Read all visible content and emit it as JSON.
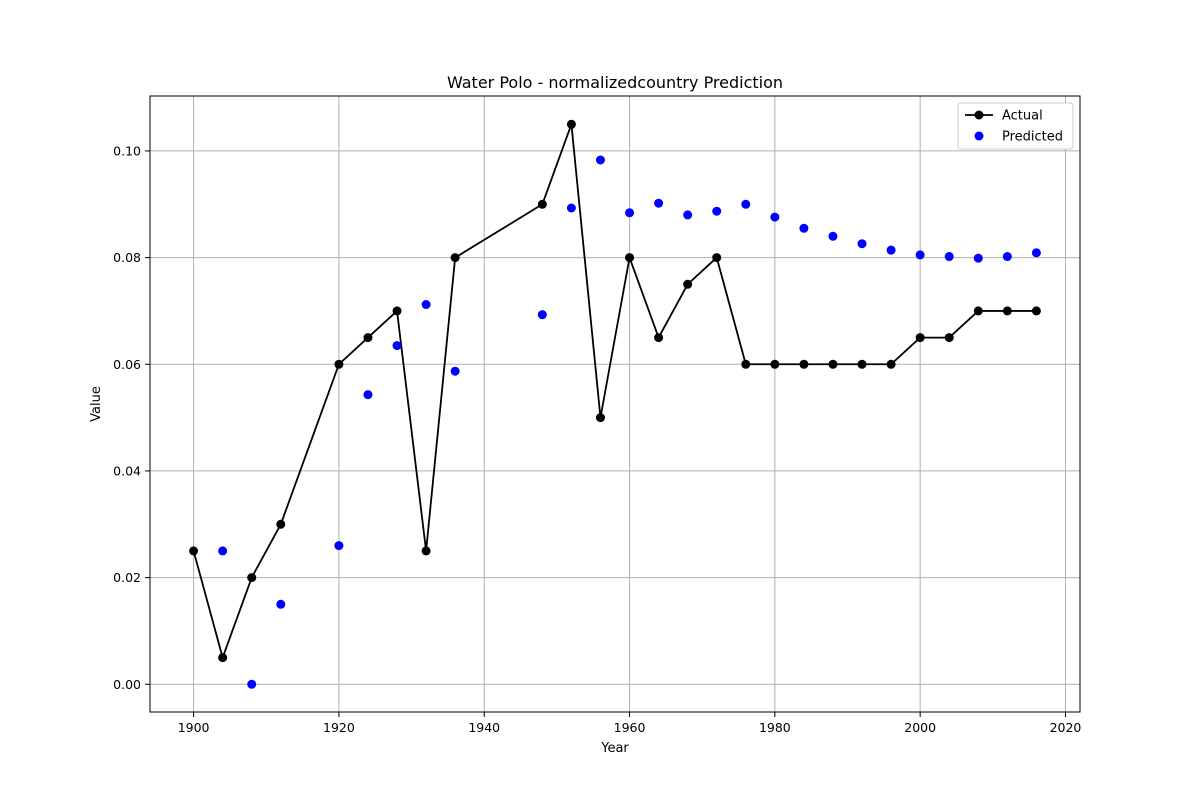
{
  "chart_data": {
    "type": "line",
    "title": "Water Polo - normalizedcountry Prediction",
    "xlabel": "Year",
    "ylabel": "Value",
    "xlim": [
      1894,
      2022
    ],
    "ylim": [
      -0.0052,
      0.1103
    ],
    "x_ticks": [
      1900,
      1920,
      1940,
      1960,
      1980,
      2000,
      2020
    ],
    "y_ticks": [
      0.0,
      0.02,
      0.04,
      0.06,
      0.08,
      0.1
    ],
    "y_tick_labels": [
      "0.00",
      "0.02",
      "0.04",
      "0.06",
      "0.08",
      "0.10"
    ],
    "grid": true,
    "legend_position": "top-right",
    "series": [
      {
        "name": "Actual",
        "style": "line-with-markers",
        "color": "#000000",
        "x": [
          1900,
          1904,
          1908,
          1912,
          1920,
          1924,
          1928,
          1932,
          1936,
          1948,
          1952,
          1956,
          1960,
          1964,
          1968,
          1972,
          1976,
          1980,
          1984,
          1988,
          1992,
          1996,
          2000,
          2004,
          2008,
          2012,
          2016
        ],
        "values": [
          0.025,
          0.005,
          0.02,
          0.03,
          0.06,
          0.065,
          0.07,
          0.025,
          0.08,
          0.09,
          0.105,
          0.05,
          0.08,
          0.065,
          0.075,
          0.08,
          0.06,
          0.06,
          0.06,
          0.06,
          0.06,
          0.06,
          0.065,
          0.065,
          0.07,
          0.07,
          0.07
        ]
      },
      {
        "name": "Predicted",
        "style": "scatter",
        "color": "#0000ff",
        "x": [
          1904,
          1908,
          1912,
          1920,
          1924,
          1928,
          1932,
          1936,
          1948,
          1952,
          1956,
          1960,
          1964,
          1968,
          1972,
          1976,
          1980,
          1984,
          1988,
          1992,
          1996,
          2000,
          2004,
          2008,
          2012,
          2016
        ],
        "values": [
          0.025,
          0.0,
          0.015,
          0.026,
          0.0543,
          0.0635,
          0.0712,
          0.0587,
          0.0693,
          0.0893,
          0.0983,
          0.0884,
          0.0902,
          0.088,
          0.0887,
          0.09,
          0.0876,
          0.0855,
          0.084,
          0.0826,
          0.0814,
          0.0805,
          0.0802,
          0.0799,
          0.0802,
          0.0809
        ]
      }
    ]
  }
}
